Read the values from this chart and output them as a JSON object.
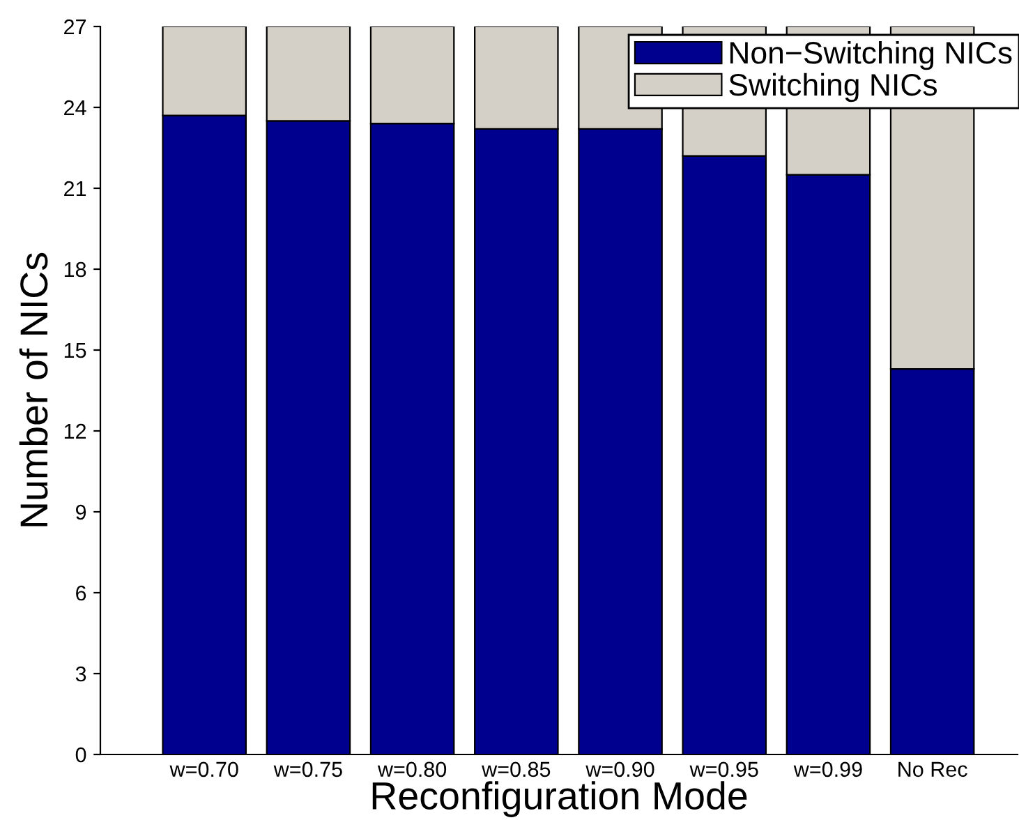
{
  "chart_data": {
    "type": "bar",
    "stacked": true,
    "xlabel": "Reconfiguration Mode",
    "ylabel": "Number of NICs",
    "categories": [
      "w=0.70",
      "w=0.75",
      "w=0.80",
      "w=0.85",
      "w=0.90",
      "w=0.95",
      "w=0.99",
      "No Rec"
    ],
    "series": [
      {
        "name": "Non−Switching NICs",
        "color": "#00008f",
        "values": [
          23.7,
          23.5,
          23.4,
          23.2,
          23.2,
          22.2,
          21.5,
          14.3
        ]
      },
      {
        "name": "Switching NICs",
        "color": "#d4d0c8",
        "values": [
          3.3,
          3.5,
          3.6,
          3.8,
          3.8,
          4.8,
          5.5,
          12.7
        ]
      }
    ],
    "ylim": [
      0,
      27
    ],
    "yticks": [
      0,
      3,
      6,
      9,
      12,
      15,
      18,
      21,
      24,
      27
    ],
    "grid": false,
    "legend": "top right"
  }
}
